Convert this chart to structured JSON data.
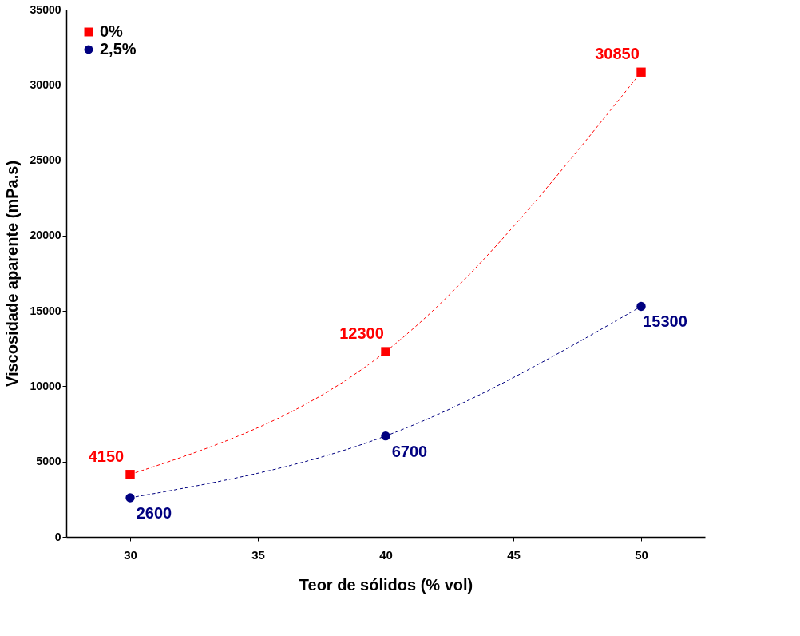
{
  "chart_data": {
    "type": "line",
    "xlabel": "Teor de sólidos (% vol)",
    "ylabel": "Viscosidade aparente (mPa.s)",
    "x": [
      30,
      40,
      50
    ],
    "series": [
      {
        "name": "0%",
        "color": "#ff0000",
        "marker": "square",
        "values": [
          4150,
          12300,
          30850
        ]
      },
      {
        "name": "2,5%",
        "color": "#000080",
        "marker": "circle",
        "values": [
          2600,
          6700,
          15300
        ]
      }
    ],
    "xlim": [
      27.5,
      52.5
    ],
    "xticks": [
      30,
      35,
      40,
      45,
      50
    ],
    "ylim": [
      0,
      35000
    ],
    "yticks": [
      0,
      5000,
      10000,
      15000,
      20000,
      25000,
      30000,
      35000
    ],
    "line_style": "dashed",
    "data_labels": true,
    "legend": "top left",
    "grid": false
  }
}
